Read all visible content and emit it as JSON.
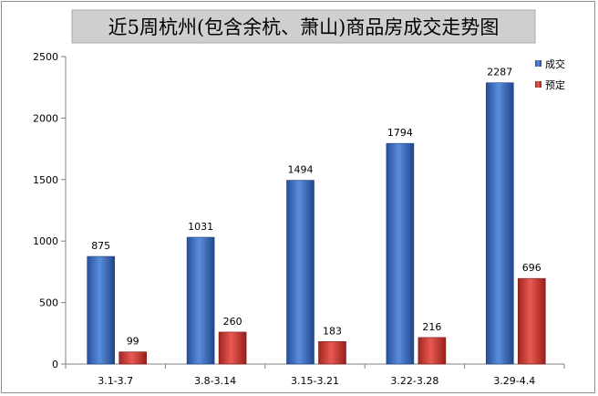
{
  "chart_data": {
    "type": "bar",
    "title": "近5周杭州(包含余杭、萧山)商品房成交走势图",
    "categories": [
      "3.1-3.7",
      "3.8-3.14",
      "3.15-3.21",
      "3.22-3.28",
      "3.29-4.4"
    ],
    "series": [
      {
        "name": "成交",
        "values": [
          875,
          1031,
          1494,
          1794,
          2287
        ],
        "color": "#3a6fc4"
      },
      {
        "name": "预定",
        "values": [
          99,
          260,
          183,
          216,
          696
        ],
        "color": "#d23a34"
      }
    ],
    "y_ticks": [
      0,
      500,
      1000,
      1500,
      2000,
      2500
    ],
    "ylim": [
      0,
      2500
    ],
    "grid": false,
    "legend_position": "top-right",
    "title_background": "#cfcfcf"
  }
}
